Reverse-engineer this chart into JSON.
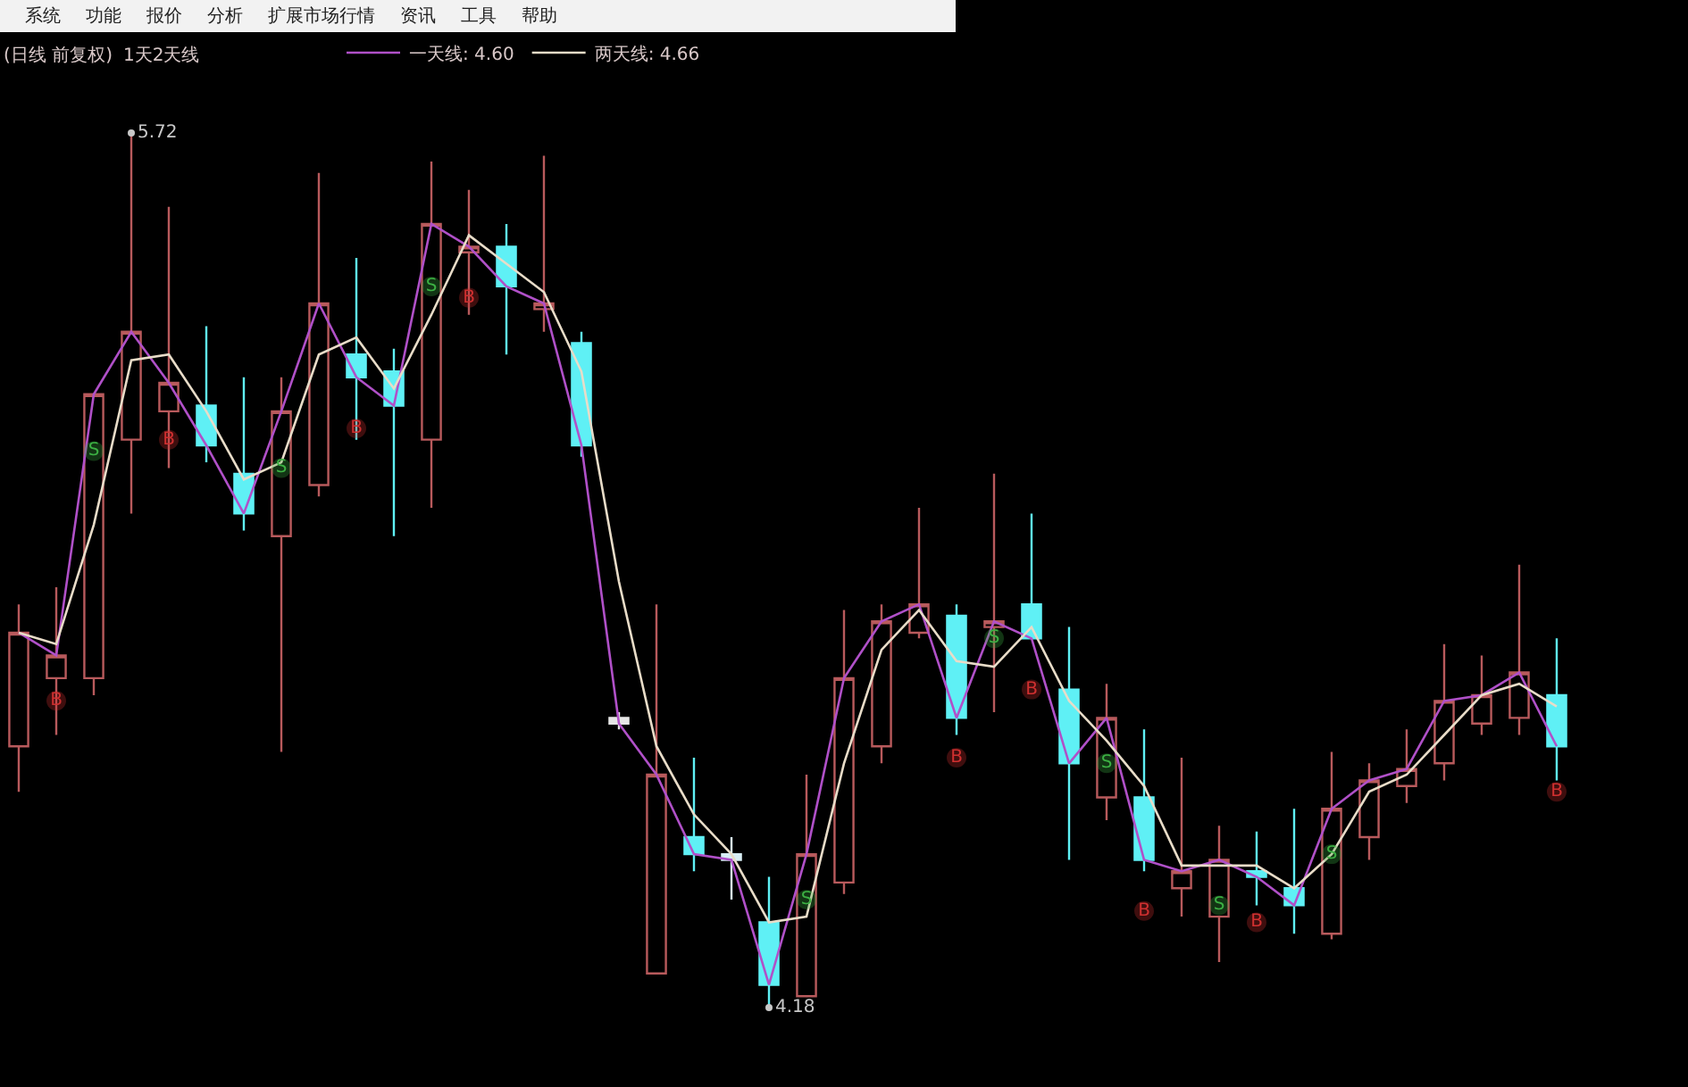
{
  "chart_data": {
    "type": "candlestick",
    "title": "(日线 前复权)",
    "subtitle": "1天2天线",
    "annotations": [
      "系统",
      "功能",
      "报价",
      "分析",
      "扩展市场行情",
      "资讯",
      "工具",
      "帮助"
    ],
    "categories": [
      null,
      null,
      null,
      null,
      null,
      null,
      null,
      null,
      null,
      null,
      null,
      null,
      null,
      null,
      null,
      null,
      null,
      null,
      null,
      null,
      null,
      null,
      null,
      null,
      null,
      null,
      null,
      null,
      null,
      null,
      null,
      null,
      null,
      null,
      null,
      null,
      null,
      null,
      null,
      null,
      null,
      null
    ],
    "ohlc": [
      [
        4.64,
        4.89,
        4.56,
        4.84
      ],
      [
        4.76,
        4.92,
        4.66,
        4.8
      ],
      [
        4.76,
        5.26,
        4.73,
        5.26
      ],
      [
        5.18,
        5.72,
        5.05,
        5.37
      ],
      [
        5.23,
        5.59,
        5.13,
        5.28
      ],
      [
        5.24,
        5.38,
        5.14,
        5.17
      ],
      [
        5.12,
        5.29,
        5.02,
        5.05
      ],
      [
        5.01,
        5.29,
        4.63,
        5.23
      ],
      [
        5.1,
        5.65,
        5.08,
        5.42
      ],
      [
        5.33,
        5.5,
        5.18,
        5.29
      ],
      [
        5.3,
        5.34,
        5.01,
        5.24
      ],
      [
        5.18,
        5.67,
        5.06,
        5.56
      ],
      [
        5.51,
        5.62,
        5.4,
        5.52
      ],
      [
        5.52,
        5.56,
        5.33,
        5.45
      ],
      [
        5.41,
        5.68,
        5.37,
        5.42
      ],
      [
        5.35,
        5.37,
        5.15,
        5.17
      ],
      [
        4.69,
        4.7,
        4.67,
        4.68
      ],
      [
        4.24,
        4.89,
        4.24,
        4.59
      ],
      [
        4.48,
        4.62,
        4.42,
        4.45
      ],
      [
        4.45,
        4.48,
        4.37,
        4.44
      ],
      [
        4.33,
        4.41,
        4.18,
        4.22
      ],
      [
        4.2,
        4.59,
        4.2,
        4.45
      ],
      [
        4.4,
        4.88,
        4.38,
        4.76
      ],
      [
        4.64,
        4.89,
        4.61,
        4.86
      ],
      [
        4.84,
        5.06,
        4.83,
        4.89
      ],
      [
        4.87,
        4.89,
        4.66,
        4.69
      ],
      [
        4.85,
        5.12,
        4.7,
        4.86
      ],
      [
        4.89,
        5.05,
        4.83,
        4.83
      ],
      [
        4.74,
        4.85,
        4.44,
        4.61
      ],
      [
        4.55,
        4.75,
        4.51,
        4.69
      ],
      [
        4.55,
        4.67,
        4.42,
        4.44
      ],
      [
        4.39,
        4.62,
        4.34,
        4.42
      ],
      [
        4.34,
        4.5,
        4.26,
        4.44
      ],
      [
        4.42,
        4.49,
        4.36,
        4.41
      ],
      [
        4.39,
        4.53,
        4.31,
        4.36
      ],
      [
        4.31,
        4.63,
        4.3,
        4.53
      ],
      [
        4.48,
        4.61,
        4.44,
        4.58
      ],
      [
        4.57,
        4.67,
        4.54,
        4.6
      ],
      [
        4.61,
        4.82,
        4.58,
        4.72
      ],
      [
        4.68,
        4.8,
        4.66,
        4.73
      ],
      [
        4.69,
        4.96,
        4.66,
        4.77
      ],
      [
        4.73,
        4.83,
        4.58,
        4.64
      ]
    ],
    "colors": [
      "#b85a5c",
      "#b85a5c",
      "#b85a5c",
      "#b85a5c",
      "#b85a5c",
      "#5ff0f5",
      "#5ff0f5",
      "#b85a5c",
      "#b85a5c",
      "#5ff0f5",
      "#5ff0f5",
      "#b85a5c",
      "#b85a5c",
      "#5ff0f5",
      "#b85a5c",
      "#5ff0f5",
      "#e6e6e6",
      "#b85a5c",
      "#5ff0f5",
      "#d8eef5",
      "#5ff0f5",
      "#b85a5c",
      "#b85a5c",
      "#b85a5c",
      "#b85a5c",
      "#5ff0f5",
      "#b85a5c",
      "#5ff0f5",
      "#5ff0f5",
      "#b85a5c",
      "#5ff0f5",
      "#b85a5c",
      "#b85a5c",
      "#5ff0f5",
      "#5ff0f5",
      "#b85a5c",
      "#b85a5c",
      "#b85a5c",
      "#b85a5c",
      "#b85a5c",
      "#b85a5c",
      "#5ff0f5"
    ],
    "legend": "top left",
    "marker": "none",
    "series": [
      {
        "type": "line",
        "name": "一天线: 4.60",
        "color": "#b050c8",
        "values": [
          4.84,
          4.8,
          5.26,
          5.37,
          5.28,
          5.17,
          5.05,
          5.23,
          5.42,
          5.29,
          5.24,
          5.56,
          5.52,
          5.45,
          5.42,
          5.17,
          4.68,
          4.59,
          4.45,
          4.44,
          4.22,
          4.45,
          4.76,
          4.86,
          4.89,
          4.69,
          4.86,
          4.83,
          4.61,
          4.69,
          4.44,
          4.42,
          4.44,
          4.41,
          4.36,
          4.53,
          4.58,
          4.6,
          4.72,
          4.73,
          4.77,
          4.64
        ]
      },
      {
        "type": "line",
        "name": "两天线: 4.66",
        "color": "#e8dcc8",
        "values": [
          4.84,
          4.82,
          5.03,
          5.32,
          5.33,
          5.23,
          5.11,
          5.14,
          5.33,
          5.36,
          5.27,
          5.4,
          5.54,
          5.49,
          5.44,
          5.3,
          4.93,
          4.64,
          4.52,
          4.45,
          4.33,
          4.34,
          4.61,
          4.81,
          4.88,
          4.79,
          4.78,
          4.85,
          4.72,
          4.65,
          4.57,
          4.43,
          4.43,
          4.43,
          4.39,
          4.45,
          4.56,
          4.59,
          4.66,
          4.73,
          4.75,
          4.71
        ]
      },
      {
        "type": "scatter",
        "color": "#3cb043",
        "marker": "circle",
        "values": [
          null,
          null,
          5.16,
          null,
          null,
          null,
          null,
          5.13,
          null,
          null,
          null,
          5.45,
          null,
          null,
          null,
          null,
          null,
          null,
          null,
          null,
          null,
          4.37,
          null,
          null,
          null,
          null,
          4.83,
          null,
          null,
          4.61,
          null,
          null,
          4.36,
          null,
          null,
          4.45,
          null,
          null,
          null,
          null,
          null,
          null
        ],
        "value_labels": [
          null,
          null,
          "S",
          null,
          null,
          null,
          null,
          "S",
          null,
          null,
          null,
          "S",
          null,
          null,
          null,
          null,
          null,
          null,
          null,
          null,
          null,
          "S",
          null,
          null,
          null,
          null,
          "S",
          null,
          null,
          "S",
          null,
          null,
          "S",
          null,
          null,
          "S",
          null,
          null,
          null,
          null,
          null,
          null
        ]
      },
      {
        "type": "scatter",
        "color": "#d03030",
        "marker": "circle",
        "values": [
          null,
          4.72,
          null,
          null,
          5.18,
          null,
          null,
          null,
          null,
          5.2,
          null,
          null,
          5.43,
          null,
          null,
          null,
          null,
          null,
          null,
          null,
          null,
          null,
          null,
          null,
          null,
          4.62,
          null,
          4.74,
          null,
          null,
          4.35,
          null,
          null,
          4.33,
          null,
          null,
          null,
          null,
          null,
          null,
          null,
          4.56
        ],
        "value_labels": [
          null,
          "B",
          null,
          null,
          "B",
          null,
          null,
          null,
          null,
          "B",
          null,
          null,
          "B",
          null,
          null,
          null,
          null,
          null,
          null,
          null,
          null,
          null,
          null,
          null,
          null,
          "B",
          null,
          "B",
          null,
          null,
          "B",
          null,
          null,
          "B",
          null,
          null,
          null,
          null,
          null,
          null,
          null,
          "B"
        ]
      },
      {
        "type": "scatter",
        "color": "#c8c8c8",
        "marker": "circle",
        "values": [
          null,
          null,
          null,
          5.72,
          null,
          null,
          null,
          null,
          null,
          null,
          null,
          null,
          null,
          null,
          null,
          null,
          null,
          null,
          null,
          null,
          4.18,
          null,
          null,
          null,
          null,
          null,
          null,
          null,
          null,
          null,
          null,
          null,
          null,
          null,
          null,
          null,
          null,
          null,
          null,
          null,
          null,
          null
        ],
        "value_labels": [
          null,
          null,
          null,
          "5.72",
          null,
          null,
          null,
          null,
          null,
          null,
          null,
          null,
          null,
          null,
          null,
          null,
          null,
          null,
          null,
          null,
          "4.18",
          null,
          null,
          null,
          null,
          null,
          null,
          null,
          null,
          null,
          null,
          null,
          null,
          null,
          null,
          null,
          null,
          null,
          null,
          null,
          null,
          null
        ]
      }
    ]
  }
}
